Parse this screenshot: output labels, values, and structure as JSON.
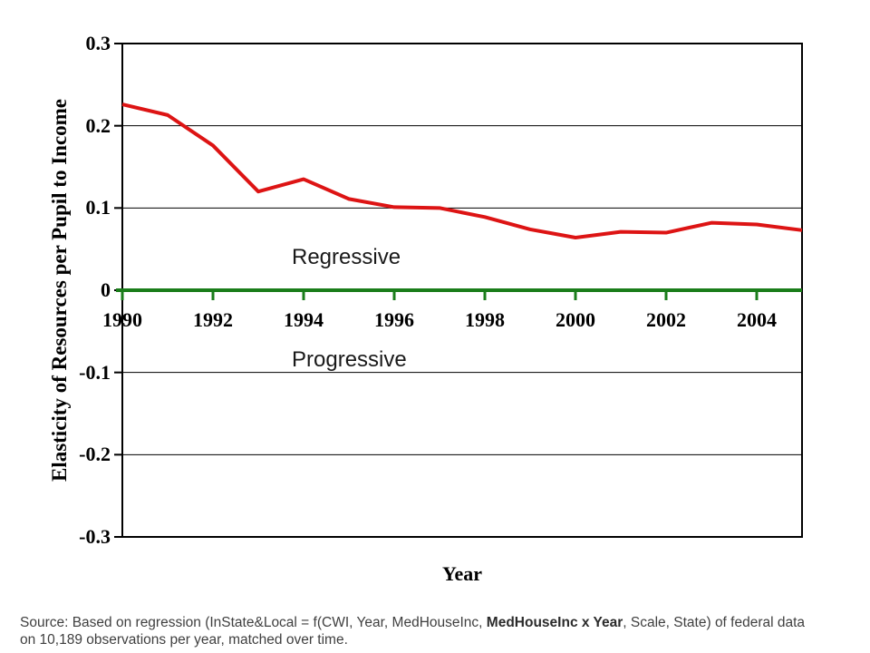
{
  "chart_data": {
    "type": "line",
    "title": "",
    "xlabel": "Year",
    "ylabel": "Elasticity of Resources per Pupil to Income",
    "x": [
      1990,
      1991,
      1992,
      1993,
      1994,
      1995,
      1996,
      1997,
      1998,
      1999,
      2000,
      2001,
      2002,
      2003,
      2004,
      2005
    ],
    "series": [
      {
        "name": "Elasticity of Resources per Pupil to Income",
        "color": "#dd1414",
        "values": [
          0.226,
          0.213,
          0.176,
          0.12,
          0.135,
          0.111,
          0.101,
          0.1,
          0.089,
          0.074,
          0.064,
          0.071,
          0.07,
          0.082,
          0.08,
          0.073
        ]
      }
    ],
    "xlim": [
      1990,
      2005
    ],
    "ylim": [
      -0.3,
      0.3
    ],
    "ytick_values": [
      0.3,
      0.2,
      0.1,
      0,
      -0.1,
      -0.2,
      -0.3
    ],
    "ytick_labels": [
      "0.3",
      "0.2",
      "0.1",
      "0",
      "-0.1",
      "-0.2",
      "-0.3"
    ],
    "xtick_values": [
      1990,
      1992,
      1994,
      1996,
      1998,
      2000,
      2002,
      2004
    ],
    "xtick_labels": [
      "1990",
      "1992",
      "1994",
      "1996",
      "1998",
      "2000",
      "2002",
      "2004"
    ],
    "grid": true,
    "gridline_color": "#000000",
    "border_color": "#000000",
    "zero_line_color": "#1a7d1a",
    "legend": "none"
  },
  "annotations": {
    "above_zero": "Regressive",
    "below_zero": "Progressive"
  },
  "source": {
    "line1_segments": [
      {
        "text": "Source: Based on regression (InState&Local = f(CWI, Year, MedHouseInc, ",
        "bold": false
      },
      {
        "text": "MedHouseInc x Year",
        "bold": true
      },
      {
        "text": ", Scale, State) of federal data",
        "bold": false
      }
    ],
    "line2": "on 10,189 observations per year, matched over time."
  }
}
